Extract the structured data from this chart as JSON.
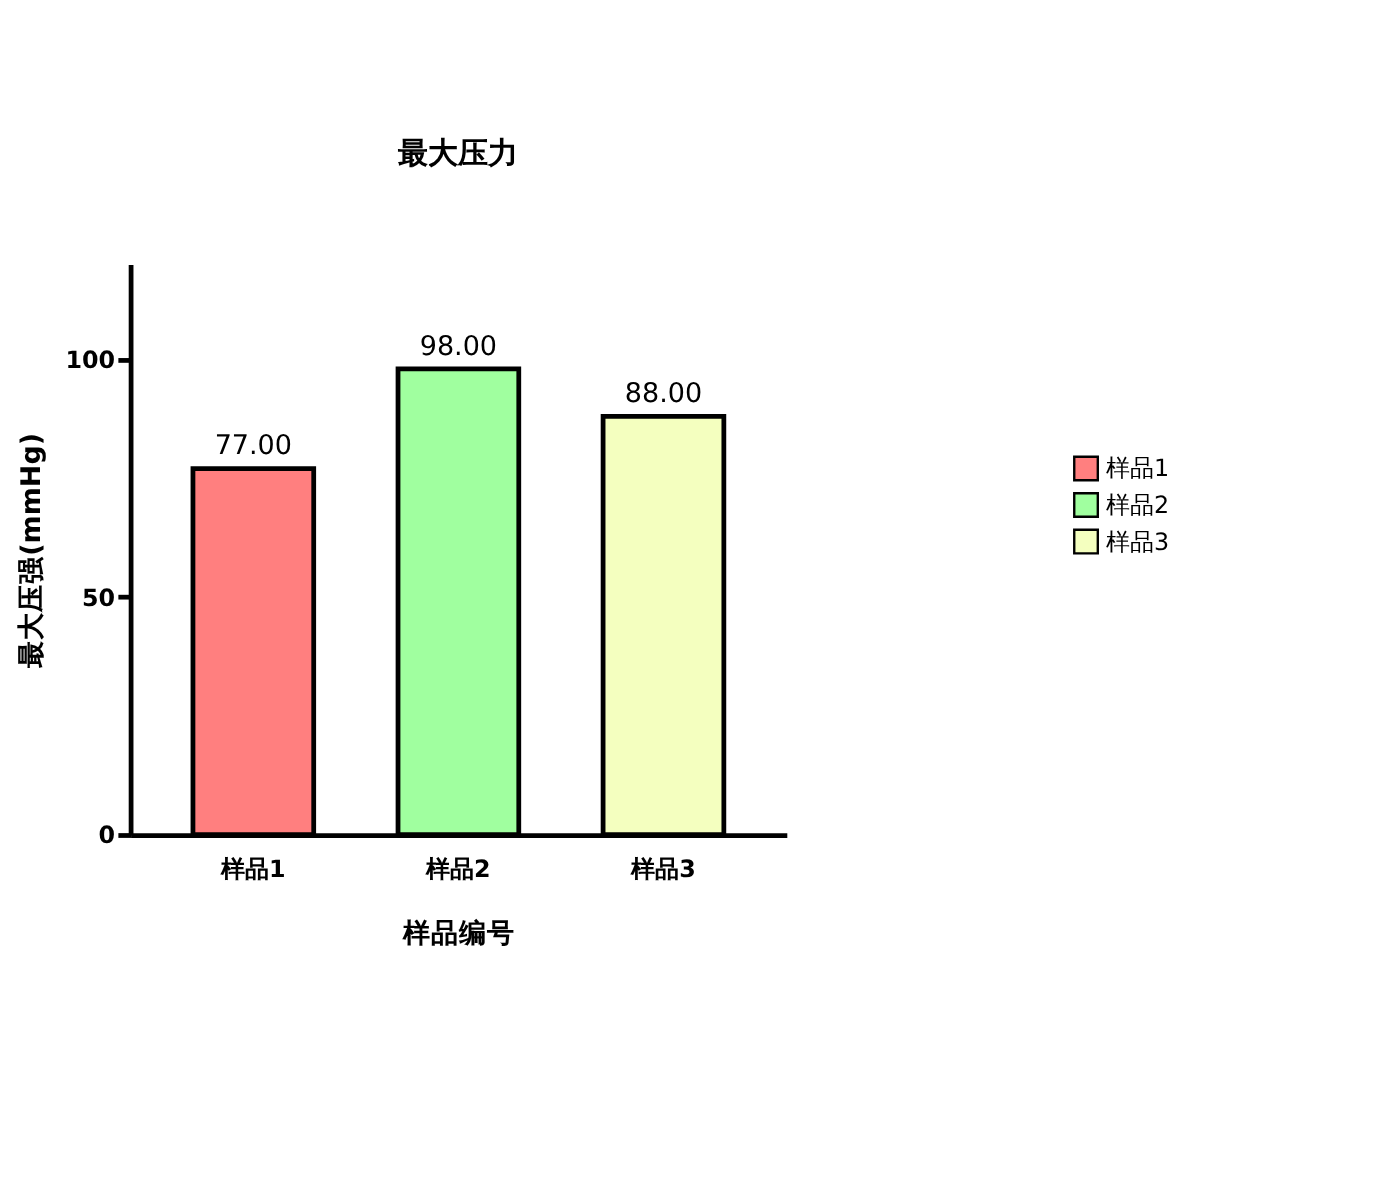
{
  "chart_data": {
    "type": "bar",
    "title": "最大压力",
    "xlabel": "样品编号",
    "ylabel": "最大压强(mmHg)",
    "categories": [
      "样品1",
      "样品2",
      "样品3"
    ],
    "series": [
      {
        "name": "样品1",
        "color": "#ff7f7f",
        "values": [
          77,
          null,
          null
        ],
        "value_labels": [
          "77.00",
          null,
          null
        ]
      },
      {
        "name": "样品2",
        "color": "#a0ff9f",
        "values": [
          null,
          98,
          null
        ],
        "value_labels": [
          null,
          "98.00",
          null
        ]
      },
      {
        "name": "样品3",
        "color": "#f4ffbf",
        "values": [
          null,
          null,
          88
        ],
        "value_labels": [
          null,
          null,
          "88.00"
        ]
      }
    ],
    "ylim": [
      0,
      120
    ],
    "yticks": [
      0,
      50,
      100
    ],
    "grid": false,
    "legend": "right"
  }
}
